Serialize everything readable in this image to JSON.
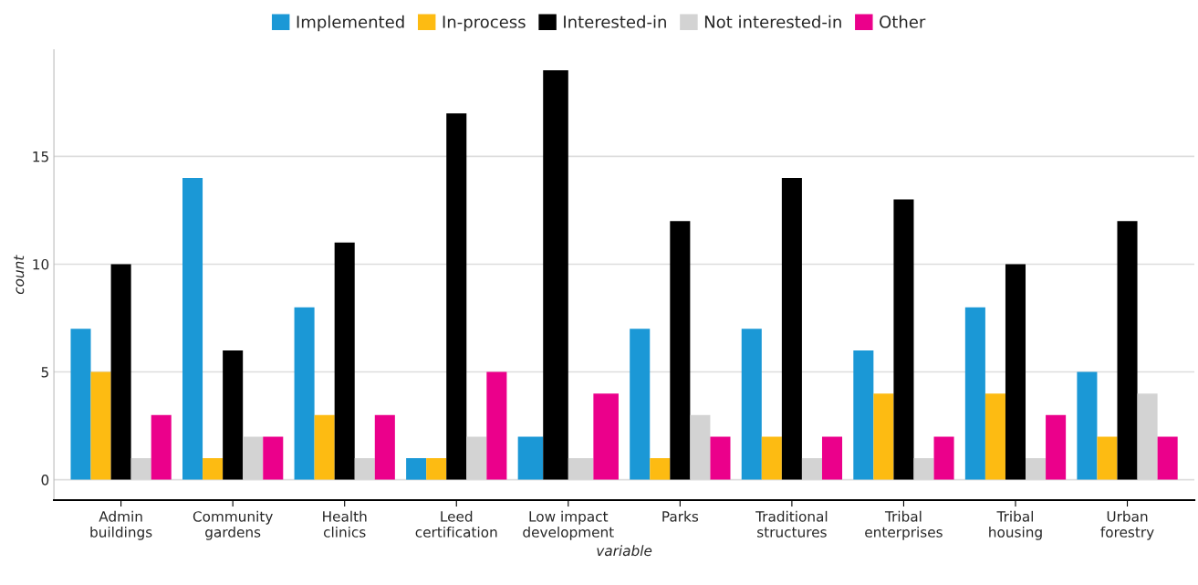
{
  "chart_data": {
    "type": "bar",
    "xlabel": "variable",
    "ylabel": "count",
    "categories": [
      "Admin\nbuildings",
      "Community\ngardens",
      "Health\nclinics",
      "Leed\ncertification",
      "Low impact\ndevelopment",
      "Parks",
      "Traditional\nstructures",
      "Tribal\nenterprises",
      "Tribal\nhousing",
      "Urban\nforestry"
    ],
    "series": [
      {
        "name": "Implemented",
        "color": "#1b98d6",
        "values": [
          7,
          14,
          8,
          1,
          2,
          7,
          7,
          6,
          8,
          5
        ]
      },
      {
        "name": "In-process",
        "color": "#fdbb12",
        "values": [
          5,
          1,
          3,
          1,
          null,
          1,
          2,
          4,
          4,
          2
        ]
      },
      {
        "name": "Interested-in",
        "color": "#000000",
        "values": [
          10,
          6,
          11,
          17,
          19,
          12,
          14,
          13,
          10,
          12
        ]
      },
      {
        "name": "Not interested-in",
        "color": "#d3d3d3",
        "values": [
          1,
          2,
          1,
          2,
          1,
          3,
          1,
          1,
          1,
          4
        ]
      },
      {
        "name": "Other",
        "color": "#eb008b",
        "values": [
          3,
          2,
          3,
          5,
          4,
          2,
          2,
          2,
          3,
          2
        ]
      }
    ],
    "ylim": [
      -0.95,
      19.95
    ],
    "yticks": [
      0,
      5,
      10,
      15
    ],
    "grid": "y",
    "legend": "top"
  }
}
